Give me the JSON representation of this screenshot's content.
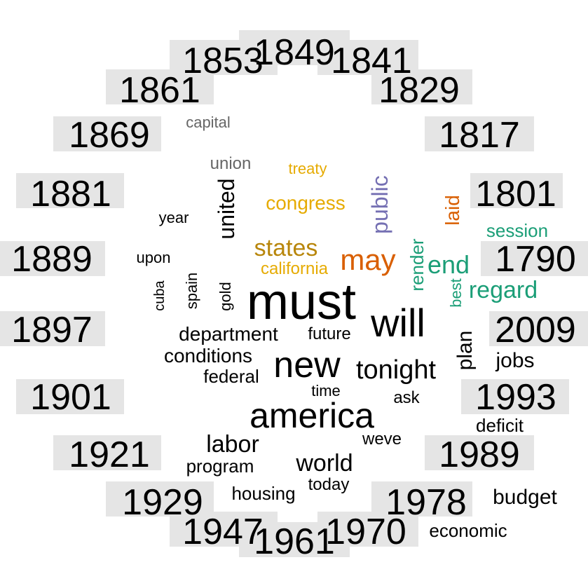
{
  "chart_data": {
    "type": "wordcloud",
    "description_type": "correspondence-style word cloud: year labels arranged in a ring, words placed by association",
    "years": [
      "1790",
      "1801",
      "1817",
      "1829",
      "1841",
      "1849",
      "1853",
      "1861",
      "1869",
      "1881",
      "1889",
      "1897",
      "1901",
      "1921",
      "1929",
      "1947",
      "1961",
      "1970",
      "1978",
      "1989",
      "1993",
      "2009"
    ],
    "words": [
      {
        "text": "must",
        "weight": 5,
        "color": "#000000"
      },
      {
        "text": "will",
        "weight": 4,
        "color": "#000000"
      },
      {
        "text": "new",
        "weight": 4,
        "color": "#000000"
      },
      {
        "text": "america",
        "weight": 4,
        "color": "#000000"
      },
      {
        "text": "tonight",
        "weight": 3,
        "color": "#000000"
      },
      {
        "text": "may",
        "weight": 3,
        "color": "#D95F02"
      },
      {
        "text": "states",
        "weight": 3,
        "color": "#B8860B"
      },
      {
        "text": "public",
        "weight": 3,
        "color": "#7570B3"
      },
      {
        "text": "regard",
        "weight": 3,
        "color": "#1B9E77"
      },
      {
        "text": "end",
        "weight": 3,
        "color": "#1B9E77"
      },
      {
        "text": "united",
        "weight": 3,
        "color": "#000000"
      },
      {
        "text": "world",
        "weight": 3,
        "color": "#000000"
      },
      {
        "text": "labor",
        "weight": 3,
        "color": "#000000"
      },
      {
        "text": "congress",
        "weight": 2,
        "color": "#E6AB02"
      },
      {
        "text": "california",
        "weight": 2,
        "color": "#E6AB02"
      },
      {
        "text": "treaty",
        "weight": 1,
        "color": "#E6AB02"
      },
      {
        "text": "laid",
        "weight": 2,
        "color": "#D95F02"
      },
      {
        "text": "session",
        "weight": 2,
        "color": "#1B9E77"
      },
      {
        "text": "render",
        "weight": 2,
        "color": "#1B9E77"
      },
      {
        "text": "best",
        "weight": 1,
        "color": "#1B9E77"
      },
      {
        "text": "union",
        "weight": 1,
        "color": "#666666"
      },
      {
        "text": "capital",
        "weight": 1,
        "color": "#666666"
      },
      {
        "text": "department",
        "weight": 2,
        "color": "#000000"
      },
      {
        "text": "conditions",
        "weight": 2,
        "color": "#000000"
      },
      {
        "text": "federal",
        "weight": 2,
        "color": "#000000"
      },
      {
        "text": "future",
        "weight": 1,
        "color": "#000000"
      },
      {
        "text": "plan",
        "weight": 2,
        "color": "#000000"
      },
      {
        "text": "jobs",
        "weight": 2,
        "color": "#000000"
      },
      {
        "text": "gold",
        "weight": 1,
        "color": "#000000"
      },
      {
        "text": "spain",
        "weight": 1,
        "color": "#000000"
      },
      {
        "text": "cuba",
        "weight": 1,
        "color": "#000000"
      },
      {
        "text": "upon",
        "weight": 1,
        "color": "#000000"
      },
      {
        "text": "year",
        "weight": 1,
        "color": "#000000"
      },
      {
        "text": "time",
        "weight": 1,
        "color": "#000000"
      },
      {
        "text": "ask",
        "weight": 1,
        "color": "#000000"
      },
      {
        "text": "weve",
        "weight": 1,
        "color": "#000000"
      },
      {
        "text": "deficit",
        "weight": 1,
        "color": "#000000"
      },
      {
        "text": "program",
        "weight": 2,
        "color": "#000000"
      },
      {
        "text": "housing",
        "weight": 1,
        "color": "#000000"
      },
      {
        "text": "today",
        "weight": 1,
        "color": "#000000"
      },
      {
        "text": "budget",
        "weight": 2,
        "color": "#000000"
      },
      {
        "text": "economic",
        "weight": 1,
        "color": "#000000"
      }
    ],
    "year_box_color": "#E5E5E5"
  }
}
